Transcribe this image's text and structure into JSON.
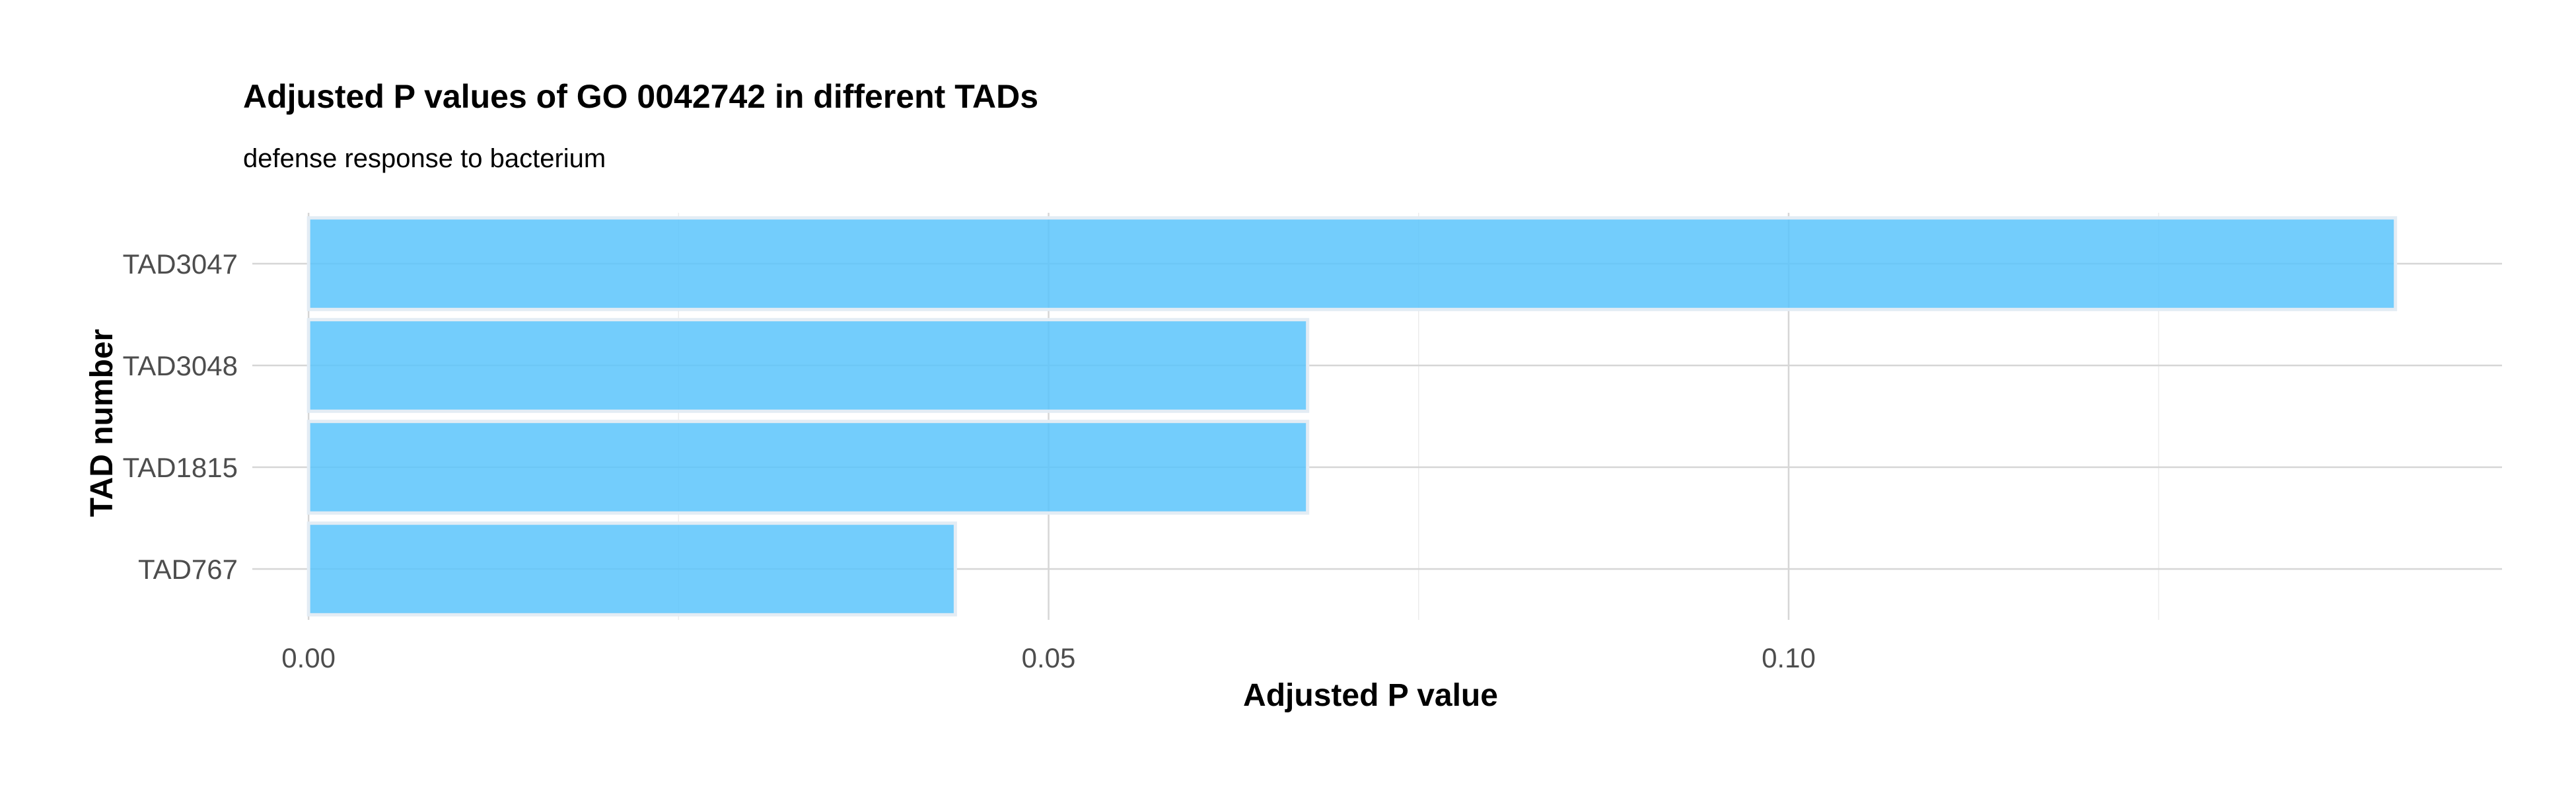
{
  "chart_data": {
    "type": "bar",
    "orientation": "horizontal",
    "title": "Adjusted P values of GO 0042742 in different TADs",
    "subtitle": "defense response to bacterium",
    "xlabel": "Adjusted P value",
    "ylabel": "TAD number",
    "categories": [
      "TAD3047",
      "TAD3048",
      "TAD1815",
      "TAD767"
    ],
    "values": [
      0.141,
      0.0675,
      0.0675,
      0.0437
    ],
    "xlim": [
      -0.0038,
      0.1482
    ],
    "xticks": [
      0.0,
      0.05,
      0.1
    ],
    "xtick_labels": [
      "0.00",
      "0.05",
      "0.10"
    ],
    "x_minor_gridlines": [
      0.025,
      0.075,
      0.125
    ],
    "grid": true,
    "legend": "none",
    "bar_color": "#5bc4fb",
    "bar_outline_color": "#e3ecf4"
  }
}
